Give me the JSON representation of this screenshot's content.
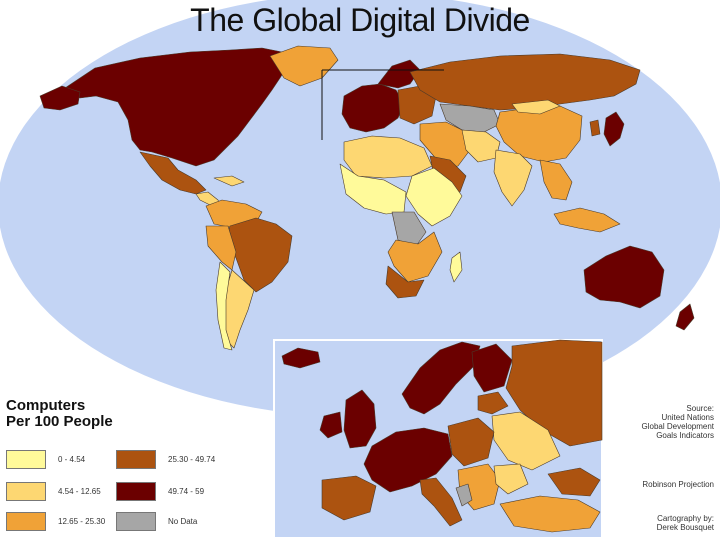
{
  "title": "The Global Digital Divide",
  "legend": {
    "title_line1": "Computers",
    "title_line2": "Per 100 People",
    "classes": [
      {
        "label": "0 - 4.54",
        "color": "#fffa9a"
      },
      {
        "label": "4.54 - 12.65",
        "color": "#fdd772"
      },
      {
        "label": "12.65 - 25.30",
        "color": "#f0a237"
      },
      {
        "label": "25.30 - 49.74",
        "color": "#ac5310"
      },
      {
        "label": "49.74 - 59",
        "color": "#6b0000"
      },
      {
        "label": "No Data",
        "color": "#a6a6a6"
      }
    ]
  },
  "source": [
    "Source:",
    "United Nations",
    "Global Development",
    "Goals Indicators"
  ],
  "projection": "Robinson Projection",
  "cartography": [
    "Cartography by:",
    "Derek Bousquet"
  ],
  "colors": {
    "ocean": "#c3d4f4",
    "border": "#4a3a2a"
  }
}
